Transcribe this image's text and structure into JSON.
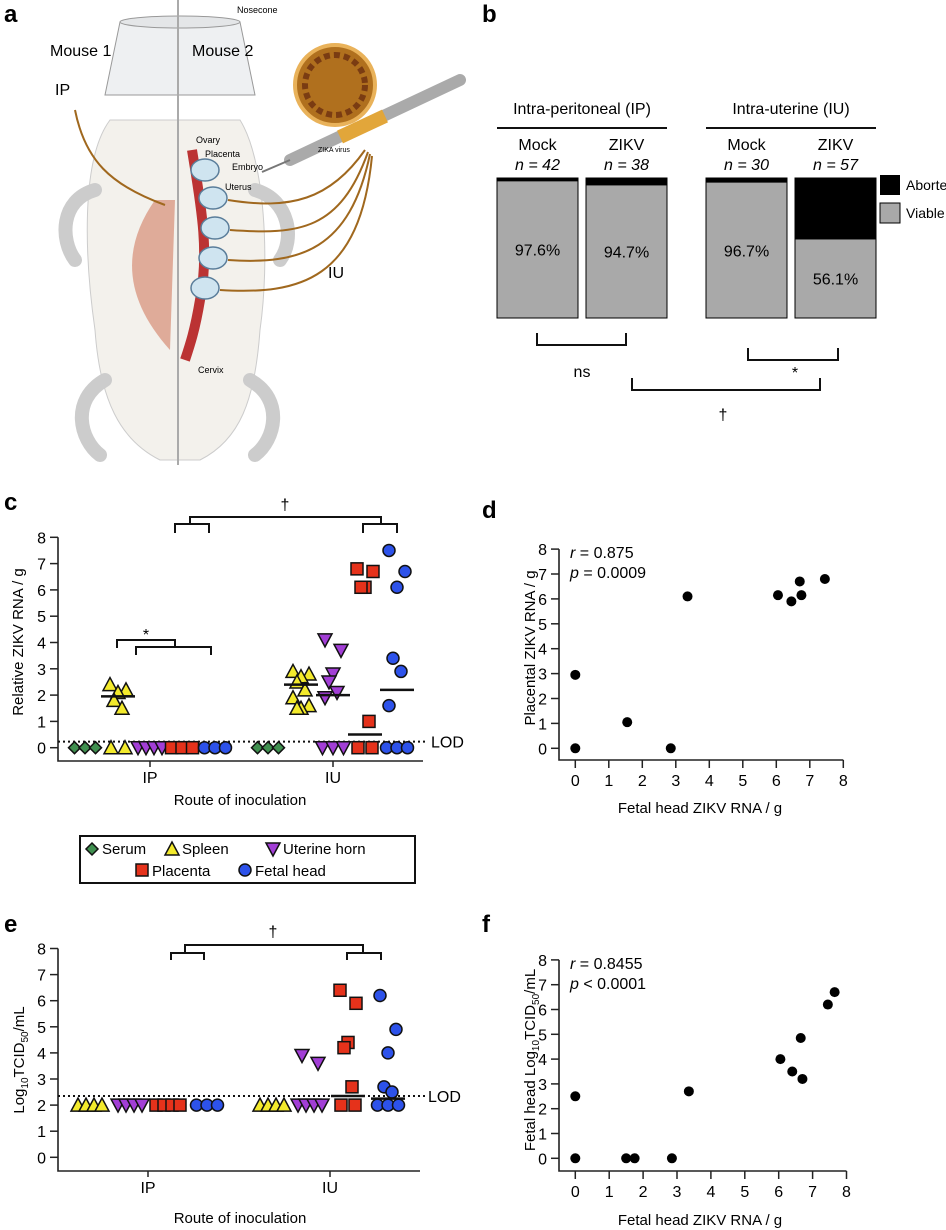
{
  "panel_labels": {
    "a": "a",
    "b": "b",
    "c": "c",
    "d": "d",
    "e": "e",
    "f": "f"
  },
  "colors": {
    "serum": "#3f8f4f",
    "spleen": "#f3ea2c",
    "uterine": "#a23ed6",
    "placenta": "#e5321b",
    "fetal": "#2d52ea",
    "aborted": "#000000",
    "viable": "#a9a9a9"
  },
  "panel_a": {
    "nosecone": "Nosecone",
    "mouse1": "Mouse 1",
    "mouse2": "Mouse 2",
    "ip": "IP",
    "iu": "IU",
    "ovary": "Ovary",
    "placenta": "Placenta",
    "embryo": "Embryo",
    "uterus": "Uterus",
    "cervix": "Cervix",
    "virus": "ZIKA virus"
  },
  "legend": {
    "serum": "Serum",
    "spleen": "Spleen",
    "uterine": "Uterine horn",
    "placenta": "Placenta",
    "fetal": "Fetal head"
  },
  "chart_data": [
    {
      "panel": "b",
      "type": "bar",
      "stacked": true,
      "groups": [
        {
          "label": "Intra-peritoneal (IP)"
        },
        {
          "label": "Intra-uterine (IU)"
        }
      ],
      "categories": [
        {
          "label": "Mock",
          "n": "n = 42",
          "viable_label": "97.6%"
        },
        {
          "label": "ZIKV",
          "n": "n = 38",
          "viable_label": "94.7%"
        },
        {
          "label": "Mock",
          "n": "n = 30",
          "viable_label": "96.7%"
        },
        {
          "label": "ZIKV",
          "n": "n = 57",
          "viable_label": "56.1%"
        }
      ],
      "series": [
        {
          "name": "Aborted",
          "values": [
            2.4,
            5.3,
            3.3,
            43.9
          ]
        },
        {
          "name": "Viable",
          "values": [
            97.6,
            94.7,
            96.7,
            56.1
          ]
        }
      ],
      "legend_position": "right",
      "significance": [
        "ns",
        "*",
        "†"
      ]
    },
    {
      "panel": "c",
      "type": "scatter",
      "ylabel": "Relative ZIKV RNA / g",
      "xlabel": "Route of inoculation",
      "ylim": [
        0,
        8
      ],
      "yticks": [
        "0",
        "1",
        "2",
        "3",
        "4",
        "5",
        "6",
        "7",
        "8"
      ],
      "xcategories": [
        "IP",
        "IU"
      ],
      "lod_label": "LOD",
      "lod": 0.23,
      "significance": [
        "*",
        "†"
      ],
      "series": [
        {
          "route": "IP",
          "tissue": "serum",
          "values": [
            0,
            0,
            0
          ]
        },
        {
          "route": "IP",
          "tissue": "spleen",
          "values": [
            2.4,
            2.2,
            2.1,
            1.8,
            1.5,
            0,
            0
          ],
          "line": 1.95
        },
        {
          "route": "IP",
          "tissue": "uterine",
          "values": [
            0,
            0,
            0,
            0
          ]
        },
        {
          "route": "IP",
          "tissue": "placenta",
          "values": [
            0,
            0,
            0
          ]
        },
        {
          "route": "IP",
          "tissue": "fetal",
          "values": [
            0,
            0,
            0
          ]
        },
        {
          "route": "IU",
          "tissue": "serum",
          "values": [
            0,
            0,
            0
          ]
        },
        {
          "route": "IU",
          "tissue": "spleen",
          "values": [
            2.9,
            2.8,
            2.7,
            2.5,
            2.2,
            1.9,
            1.6,
            1.5,
            1.5
          ],
          "line": 2.4
        },
        {
          "route": "IU",
          "tissue": "uterine",
          "values": [
            4.1,
            3.7,
            2.8,
            2.5,
            2.1,
            1.9,
            0,
            0,
            0
          ],
          "line": 2.0
        },
        {
          "route": "IU",
          "tissue": "placenta",
          "values": [
            6.8,
            6.7,
            6.1,
            6.1,
            1.0,
            0,
            0
          ],
          "line": 0.5
        },
        {
          "route": "IU",
          "tissue": "fetal",
          "values": [
            7.5,
            6.7,
            6.1,
            3.4,
            2.9,
            1.6,
            0,
            0,
            0
          ],
          "line": 2.2
        }
      ]
    },
    {
      "panel": "d",
      "type": "scatter",
      "ylabel": "Placental ZIKV RNA / g",
      "xlabel": "Fetal head ZIKV RNA / g",
      "xlim": [
        0,
        8
      ],
      "ylim": [
        0,
        8
      ],
      "xticks": [
        "0",
        "1",
        "2",
        "3",
        "4",
        "5",
        "6",
        "7",
        "8"
      ],
      "yticks": [
        "0",
        "1",
        "2",
        "3",
        "4",
        "5",
        "6",
        "7",
        "8"
      ],
      "stats": {
        "r_sym": "r",
        "r": " = 0.875",
        "p_sym": "p",
        "p": " = 0.0009"
      },
      "points": [
        [
          0,
          0
        ],
        [
          0,
          2.95
        ],
        [
          1.55,
          1.05
        ],
        [
          2.85,
          0
        ],
        [
          3.35,
          6.1
        ],
        [
          6.05,
          6.15
        ],
        [
          6.45,
          5.9
        ],
        [
          6.7,
          6.7
        ],
        [
          6.75,
          6.15
        ],
        [
          7.45,
          6.8
        ]
      ]
    },
    {
      "panel": "e",
      "type": "scatter",
      "ylabel_parts": [
        "Log",
        "10",
        "TCID",
        "50",
        "/mL"
      ],
      "xlabel": "Route of inoculation",
      "ylim": [
        0,
        8
      ],
      "yticks": [
        "0",
        "1",
        "2",
        "3",
        "4",
        "5",
        "6",
        "7",
        "8"
      ],
      "xcategories": [
        "IP",
        "IU"
      ],
      "lod_label": "LOD",
      "lod": 2.35,
      "significance": [
        "†"
      ],
      "series": [
        {
          "route": "IP",
          "tissue": "spleen",
          "values": [
            2,
            2,
            2,
            2
          ]
        },
        {
          "route": "IP",
          "tissue": "uterine",
          "values": [
            2,
            2,
            2,
            2
          ]
        },
        {
          "route": "IP",
          "tissue": "placenta",
          "values": [
            2,
            2,
            2,
            2
          ]
        },
        {
          "route": "IP",
          "tissue": "fetal",
          "values": [
            2,
            2,
            2
          ]
        },
        {
          "route": "IU",
          "tissue": "spleen",
          "values": [
            2,
            2,
            2,
            2
          ]
        },
        {
          "route": "IU",
          "tissue": "uterine",
          "values": [
            3.9,
            3.6,
            2,
            2,
            2,
            2
          ]
        },
        {
          "route": "IU",
          "tissue": "placenta",
          "values": [
            6.4,
            5.9,
            4.4,
            4.2,
            2.7,
            2,
            2
          ],
          "line": 2.35
        },
        {
          "route": "IU",
          "tissue": "fetal",
          "values": [
            6.2,
            4.9,
            4.0,
            2.7,
            2.5,
            2,
            2,
            2
          ],
          "line": 2.25
        }
      ]
    },
    {
      "panel": "f",
      "type": "scatter",
      "ylabel_parts": [
        "Fetal head Log",
        "10",
        "TCID",
        "50",
        "/mL"
      ],
      "xlabel": "Fetal head ZIKV RNA / g",
      "xlim": [
        0,
        8
      ],
      "ylim": [
        0,
        8
      ],
      "xticks": [
        "0",
        "1",
        "2",
        "3",
        "4",
        "5",
        "6",
        "7",
        "8"
      ],
      "yticks": [
        "0",
        "1",
        "2",
        "3",
        "4",
        "5",
        "6",
        "7",
        "8"
      ],
      "stats": {
        "r_sym": "r",
        "r": " = 0.8455",
        "p_sym": "p",
        "p": " < 0.0001"
      },
      "points": [
        [
          0,
          0
        ],
        [
          0,
          2.5
        ],
        [
          1.5,
          0
        ],
        [
          1.75,
          0
        ],
        [
          2.85,
          0
        ],
        [
          3.35,
          2.7
        ],
        [
          6.05,
          4.0
        ],
        [
          6.4,
          3.5
        ],
        [
          6.65,
          4.85
        ],
        [
          6.7,
          3.2
        ],
        [
          7.45,
          6.2
        ],
        [
          7.65,
          6.7
        ]
      ]
    }
  ]
}
